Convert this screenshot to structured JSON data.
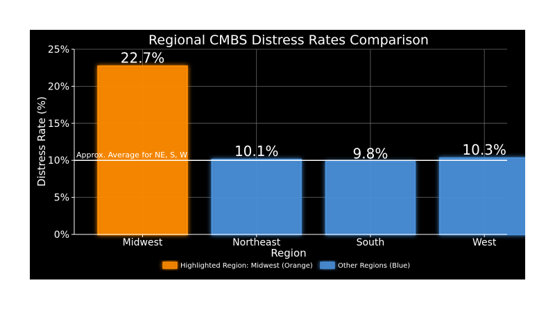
{
  "chart_data": {
    "type": "bar",
    "title": "Regional CMBS Distress Rates Comparison",
    "xlabel": "Region",
    "ylabel": "Distress Rate (%)",
    "categories": [
      "Midwest",
      "Northeast",
      "South",
      "West"
    ],
    "values": [
      22.7,
      10.1,
      9.8,
      10.3
    ],
    "value_labels": [
      "22.7%",
      "10.1%",
      "9.8%",
      "10.3%"
    ],
    "bar_colors": [
      "#ff8c00",
      "#4a90d9",
      "#4a90d9",
      "#4a90d9"
    ],
    "ylim": [
      0,
      25
    ],
    "yticks": [
      0,
      5,
      10,
      15,
      20,
      25
    ],
    "ytick_labels": [
      "0%",
      "5%",
      "10%",
      "15%",
      "20%",
      "25%"
    ],
    "grid": true,
    "reference_line": {
      "value": 10,
      "label": "Approx. Average for NE, S, W",
      "color": "#ffffff"
    },
    "legend": {
      "placement": "bottom-center",
      "entries": [
        {
          "label": "Highlighted Region: Midwest (Orange)",
          "color": "#ff8c00"
        },
        {
          "label": "Other Regions (Blue)",
          "color": "#4a90d9"
        }
      ]
    },
    "background": "#000000"
  }
}
